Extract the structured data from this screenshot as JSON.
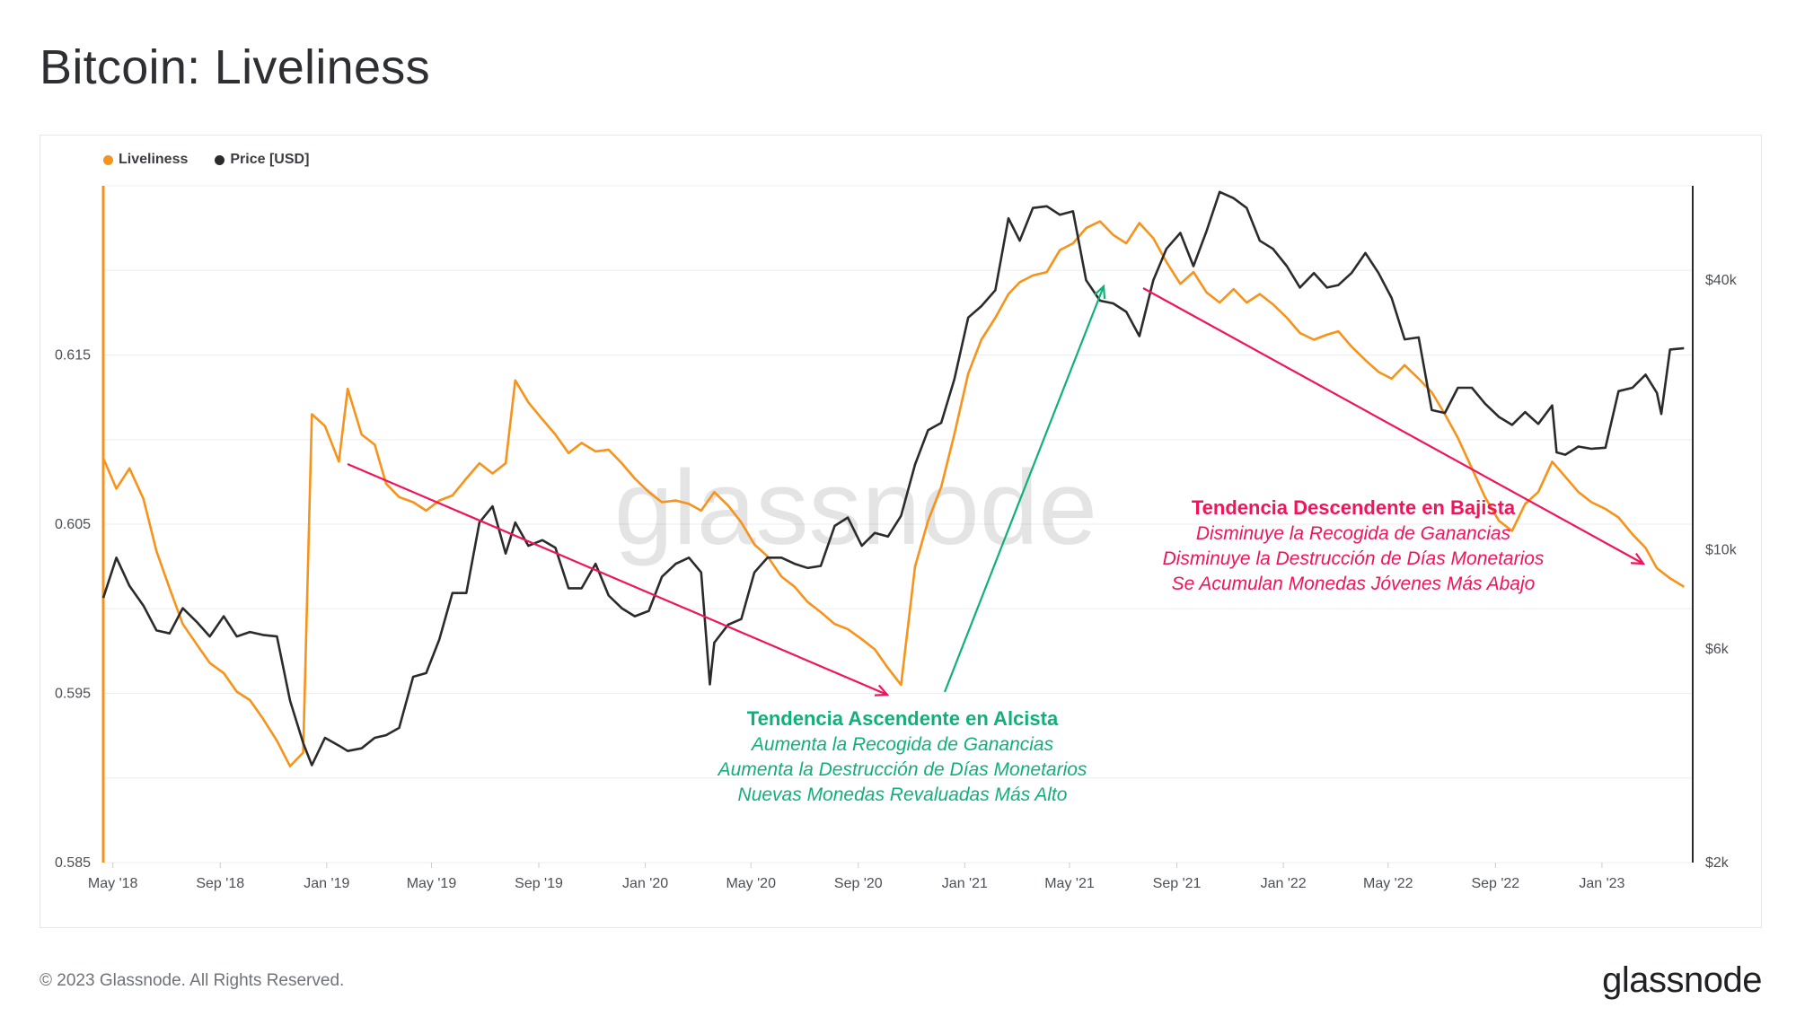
{
  "title": "Bitcoin: Liveliness",
  "footer": {
    "copyright": "© 2023 Glassnode. All Rights Reserved.",
    "logo": "glassnode"
  },
  "watermark": "glassnode",
  "colors": {
    "liveliness": "#f7931a",
    "price": "#2b2b2b",
    "bull": "#11b07a",
    "bear": "#f0145a"
  },
  "legend": [
    {
      "label": "Liveliness",
      "color": "#f7931a"
    },
    {
      "label": "Price [USD]",
      "color": "#2b2b2b"
    }
  ],
  "annotations": {
    "bull": {
      "title": "Tendencia Ascendente en Alcista",
      "lines": [
        "Aumenta la Recogida de Ganancias",
        "Aumenta la Destrucción de Días Monetarios",
        "Nuevas Monedas Revaluadas Más Alto"
      ]
    },
    "bear": {
      "title": "Tendencia Descendente en Bajista",
      "lines": [
        "Disminuye la Recogida de Ganancias",
        "Disminuye la Destrucción de Días Monetarios",
        "Se Acumulan Monedas Jóvenes Más Abajo"
      ]
    }
  },
  "chart_data": {
    "type": "line",
    "title": "Bitcoin: Liveliness",
    "x_tick_labels": [
      "May '18",
      "Sep '18",
      "Jan '19",
      "May '19",
      "Sep '19",
      "Jan '20",
      "May '20",
      "Sep '20",
      "Jan '21",
      "May '21",
      "Sep '21",
      "Jan '22",
      "May '22",
      "Sep '22",
      "Jan '23"
    ],
    "x_range": [
      "2018-04-20",
      "2023-04-15"
    ],
    "y_left": {
      "label": "",
      "ticks": [
        "0.585",
        "0.595",
        "0.605",
        "0.615"
      ],
      "range": [
        0.585,
        0.625
      ]
    },
    "y_right": {
      "label": "",
      "scale": "log",
      "ticks": [
        "$2k",
        "$6k",
        "$10k",
        "$40k"
      ],
      "range": [
        2000,
        65000
      ]
    },
    "grid": true,
    "legend_position": "top-left",
    "series": [
      {
        "name": "Liveliness",
        "axis": "left",
        "points": [
          [
            "2018-04-20",
            0.6089
          ],
          [
            "2018-05-05",
            0.6071
          ],
          [
            "2018-05-20",
            0.6083
          ],
          [
            "2018-06-05",
            0.6065
          ],
          [
            "2018-06-20",
            0.6034
          ],
          [
            "2018-07-05",
            0.6012
          ],
          [
            "2018-07-20",
            0.5991
          ],
          [
            "2018-08-05",
            0.5979
          ],
          [
            "2018-08-20",
            0.5968
          ],
          [
            "2018-09-05",
            0.5962
          ],
          [
            "2018-09-20",
            0.5951
          ],
          [
            "2018-10-05",
            0.5946
          ],
          [
            "2018-10-20",
            0.5935
          ],
          [
            "2018-11-05",
            0.5922
          ],
          [
            "2018-11-20",
            0.5907
          ],
          [
            "2018-12-05",
            0.5915
          ],
          [
            "2018-12-15",
            0.6115
          ],
          [
            "2018-12-30",
            0.6108
          ],
          [
            "2019-01-15",
            0.6087
          ],
          [
            "2019-01-25",
            0.613
          ],
          [
            "2019-02-10",
            0.6103
          ],
          [
            "2019-02-25",
            0.6097
          ],
          [
            "2019-03-10",
            0.6074
          ],
          [
            "2019-03-25",
            0.6066
          ],
          [
            "2019-04-10",
            0.6063
          ],
          [
            "2019-04-25",
            0.6058
          ],
          [
            "2019-05-10",
            0.6064
          ],
          [
            "2019-05-25",
            0.6067
          ],
          [
            "2019-06-10",
            0.6077
          ],
          [
            "2019-06-25",
            0.6086
          ],
          [
            "2019-07-10",
            0.608
          ],
          [
            "2019-07-25",
            0.6086
          ],
          [
            "2019-08-05",
            0.6135
          ],
          [
            "2019-08-20",
            0.6122
          ],
          [
            "2019-09-05",
            0.6112
          ],
          [
            "2019-09-20",
            0.6103
          ],
          [
            "2019-10-05",
            0.6092
          ],
          [
            "2019-10-20",
            0.6098
          ],
          [
            "2019-11-05",
            0.6093
          ],
          [
            "2019-11-20",
            0.6094
          ],
          [
            "2019-12-05",
            0.6086
          ],
          [
            "2019-12-20",
            0.6077
          ],
          [
            "2020-01-05",
            0.6069
          ],
          [
            "2020-01-20",
            0.6063
          ],
          [
            "2020-02-05",
            0.6064
          ],
          [
            "2020-02-20",
            0.6062
          ],
          [
            "2020-03-05",
            0.6058
          ],
          [
            "2020-03-20",
            0.6069
          ],
          [
            "2020-04-05",
            0.6061
          ],
          [
            "2020-04-20",
            0.6051
          ],
          [
            "2020-05-05",
            0.6038
          ],
          [
            "2020-05-20",
            0.6031
          ],
          [
            "2020-06-05",
            0.6019
          ],
          [
            "2020-06-20",
            0.6013
          ],
          [
            "2020-07-05",
            0.6004
          ],
          [
            "2020-07-20",
            0.5998
          ],
          [
            "2020-08-05",
            0.5991
          ],
          [
            "2020-08-20",
            0.5988
          ],
          [
            "2020-09-05",
            0.5982
          ],
          [
            "2020-09-20",
            0.5976
          ],
          [
            "2020-10-05",
            0.5965
          ],
          [
            "2020-10-20",
            0.5955
          ],
          [
            "2020-11-05",
            0.6025
          ],
          [
            "2020-11-20",
            0.6052
          ],
          [
            "2020-12-05",
            0.6072
          ],
          [
            "2020-12-20",
            0.6103
          ],
          [
            "2021-01-05",
            0.6139
          ],
          [
            "2021-01-20",
            0.6159
          ],
          [
            "2021-02-05",
            0.6172
          ],
          [
            "2021-02-20",
            0.6186
          ],
          [
            "2021-03-05",
            0.6193
          ],
          [
            "2021-03-20",
            0.6197
          ],
          [
            "2021-04-05",
            0.6199
          ],
          [
            "2021-04-20",
            0.6212
          ],
          [
            "2021-05-05",
            0.6216
          ],
          [
            "2021-05-20",
            0.6225
          ],
          [
            "2021-06-05",
            0.6229
          ],
          [
            "2021-06-20",
            0.6221
          ],
          [
            "2021-07-05",
            0.6216
          ],
          [
            "2021-07-20",
            0.6228
          ],
          [
            "2021-08-05",
            0.6219
          ],
          [
            "2021-08-20",
            0.6205
          ],
          [
            "2021-09-05",
            0.6192
          ],
          [
            "2021-09-20",
            0.6199
          ],
          [
            "2021-10-05",
            0.6187
          ],
          [
            "2021-10-20",
            0.6181
          ],
          [
            "2021-11-05",
            0.6189
          ],
          [
            "2021-11-20",
            0.6181
          ],
          [
            "2021-12-05",
            0.6186
          ],
          [
            "2021-12-20",
            0.618
          ],
          [
            "2022-01-05",
            0.6172
          ],
          [
            "2022-01-20",
            0.6163
          ],
          [
            "2022-02-05",
            0.6159
          ],
          [
            "2022-02-20",
            0.6162
          ],
          [
            "2022-03-05",
            0.6164
          ],
          [
            "2022-03-20",
            0.6155
          ],
          [
            "2022-04-05",
            0.6147
          ],
          [
            "2022-04-20",
            0.614
          ],
          [
            "2022-05-05",
            0.6136
          ],
          [
            "2022-05-20",
            0.6144
          ],
          [
            "2022-06-05",
            0.6136
          ],
          [
            "2022-06-20",
            0.6128
          ],
          [
            "2022-07-05",
            0.6115
          ],
          [
            "2022-07-20",
            0.6101
          ],
          [
            "2022-08-05",
            0.6083
          ],
          [
            "2022-08-20",
            0.6066
          ],
          [
            "2022-09-05",
            0.6052
          ],
          [
            "2022-09-20",
            0.6046
          ],
          [
            "2022-10-05",
            0.6062
          ],
          [
            "2022-10-20",
            0.6069
          ],
          [
            "2022-11-05",
            0.6087
          ],
          [
            "2022-11-20",
            0.6078
          ],
          [
            "2022-12-05",
            0.6069
          ],
          [
            "2022-12-20",
            0.6063
          ],
          [
            "2023-01-05",
            0.6059
          ],
          [
            "2023-01-20",
            0.6054
          ],
          [
            "2023-02-05",
            0.6044
          ],
          [
            "2023-02-20",
            0.6036
          ],
          [
            "2023-03-05",
            0.6024
          ],
          [
            "2023-03-20",
            0.6018
          ],
          [
            "2023-04-05",
            0.6013
          ]
        ]
      },
      {
        "name": "Price [USD]",
        "axis": "right",
        "points": [
          [
            "2018-04-20",
            7800
          ],
          [
            "2018-05-05",
            9600
          ],
          [
            "2018-05-20",
            8300
          ],
          [
            "2018-06-05",
            7500
          ],
          [
            "2018-06-20",
            6600
          ],
          [
            "2018-07-05",
            6500
          ],
          [
            "2018-07-20",
            7400
          ],
          [
            "2018-08-05",
            6900
          ],
          [
            "2018-08-20",
            6400
          ],
          [
            "2018-09-05",
            7100
          ],
          [
            "2018-09-20",
            6400
          ],
          [
            "2018-10-05",
            6550
          ],
          [
            "2018-10-20",
            6450
          ],
          [
            "2018-11-05",
            6400
          ],
          [
            "2018-11-20",
            4600
          ],
          [
            "2018-12-05",
            3700
          ],
          [
            "2018-12-15",
            3300
          ],
          [
            "2018-12-30",
            3800
          ],
          [
            "2019-01-15",
            3650
          ],
          [
            "2019-01-25",
            3550
          ],
          [
            "2019-02-10",
            3600
          ],
          [
            "2019-02-25",
            3800
          ],
          [
            "2019-03-10",
            3850
          ],
          [
            "2019-03-25",
            4000
          ],
          [
            "2019-04-10",
            5200
          ],
          [
            "2019-04-25",
            5300
          ],
          [
            "2019-05-10",
            6300
          ],
          [
            "2019-05-25",
            8000
          ],
          [
            "2019-06-10",
            8000
          ],
          [
            "2019-06-25",
            11500
          ],
          [
            "2019-07-10",
            12500
          ],
          [
            "2019-07-25",
            9800
          ],
          [
            "2019-08-05",
            11500
          ],
          [
            "2019-08-20",
            10200
          ],
          [
            "2019-09-05",
            10500
          ],
          [
            "2019-09-20",
            10100
          ],
          [
            "2019-10-05",
            8200
          ],
          [
            "2019-10-20",
            8200
          ],
          [
            "2019-11-05",
            9300
          ],
          [
            "2019-11-20",
            7900
          ],
          [
            "2019-12-05",
            7400
          ],
          [
            "2019-12-20",
            7100
          ],
          [
            "2020-01-05",
            7300
          ],
          [
            "2020-01-20",
            8700
          ],
          [
            "2020-02-05",
            9300
          ],
          [
            "2020-02-20",
            9600
          ],
          [
            "2020-03-05",
            8900
          ],
          [
            "2020-03-15",
            5000
          ],
          [
            "2020-03-20",
            6200
          ],
          [
            "2020-04-05",
            6800
          ],
          [
            "2020-04-20",
            7000
          ],
          [
            "2020-05-05",
            8900
          ],
          [
            "2020-05-20",
            9600
          ],
          [
            "2020-06-05",
            9600
          ],
          [
            "2020-06-20",
            9300
          ],
          [
            "2020-07-05",
            9100
          ],
          [
            "2020-07-20",
            9200
          ],
          [
            "2020-08-05",
            11300
          ],
          [
            "2020-08-20",
            11800
          ],
          [
            "2020-09-05",
            10200
          ],
          [
            "2020-09-20",
            10900
          ],
          [
            "2020-10-05",
            10700
          ],
          [
            "2020-10-20",
            11900
          ],
          [
            "2020-11-05",
            15500
          ],
          [
            "2020-11-20",
            18500
          ],
          [
            "2020-12-05",
            19200
          ],
          [
            "2020-12-20",
            24000
          ],
          [
            "2021-01-05",
            33000
          ],
          [
            "2021-01-20",
            35000
          ],
          [
            "2021-02-05",
            38000
          ],
          [
            "2021-02-20",
            55000
          ],
          [
            "2021-03-05",
            49000
          ],
          [
            "2021-03-20",
            58000
          ],
          [
            "2021-04-05",
            58500
          ],
          [
            "2021-04-20",
            56000
          ],
          [
            "2021-05-05",
            57000
          ],
          [
            "2021-05-20",
            40000
          ],
          [
            "2021-06-05",
            36000
          ],
          [
            "2021-06-20",
            35500
          ],
          [
            "2021-07-05",
            34000
          ],
          [
            "2021-07-20",
            30000
          ],
          [
            "2021-08-05",
            40000
          ],
          [
            "2021-08-20",
            47000
          ],
          [
            "2021-09-05",
            51000
          ],
          [
            "2021-09-20",
            43000
          ],
          [
            "2021-10-05",
            51500
          ],
          [
            "2021-10-20",
            63000
          ],
          [
            "2021-11-05",
            61000
          ],
          [
            "2021-11-20",
            58000
          ],
          [
            "2021-12-05",
            49000
          ],
          [
            "2021-12-20",
            47000
          ],
          [
            "2022-01-05",
            43000
          ],
          [
            "2022-01-20",
            38500
          ],
          [
            "2022-02-05",
            41500
          ],
          [
            "2022-02-20",
            38500
          ],
          [
            "2022-03-05",
            39000
          ],
          [
            "2022-03-20",
            41500
          ],
          [
            "2022-04-05",
            46000
          ],
          [
            "2022-04-20",
            41500
          ],
          [
            "2022-05-05",
            36500
          ],
          [
            "2022-05-20",
            29500
          ],
          [
            "2022-06-05",
            29800
          ],
          [
            "2022-06-20",
            20500
          ],
          [
            "2022-07-05",
            20200
          ],
          [
            "2022-07-20",
            23000
          ],
          [
            "2022-08-05",
            23000
          ],
          [
            "2022-08-20",
            21200
          ],
          [
            "2022-09-05",
            19800
          ],
          [
            "2022-09-20",
            19000
          ],
          [
            "2022-10-05",
            20300
          ],
          [
            "2022-10-20",
            19100
          ],
          [
            "2022-11-05",
            21000
          ],
          [
            "2022-11-10",
            16500
          ],
          [
            "2022-11-20",
            16300
          ],
          [
            "2022-12-05",
            17000
          ],
          [
            "2022-12-20",
            16800
          ],
          [
            "2023-01-05",
            16900
          ],
          [
            "2023-01-20",
            22600
          ],
          [
            "2023-02-05",
            23000
          ],
          [
            "2023-02-20",
            24600
          ],
          [
            "2023-03-05",
            22400
          ],
          [
            "2023-03-10",
            20100
          ],
          [
            "2023-03-20",
            28000
          ],
          [
            "2023-04-05",
            28200
          ]
        ]
      }
    ]
  }
}
